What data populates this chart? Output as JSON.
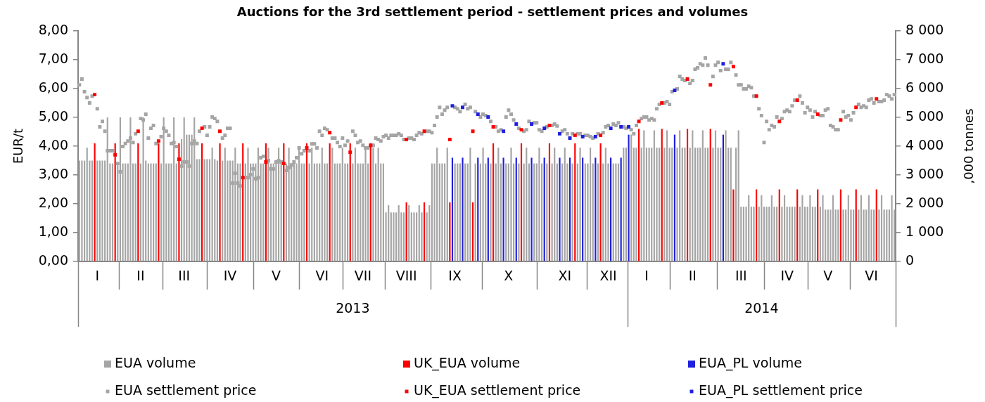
{
  "chart_data": {
    "type": "bar",
    "title": "Auctions for the 3rd settlement period - settlement prices and volumes",
    "ylabel": "EUR/t",
    "y2label": ",000 tonnes",
    "categories": [
      null,
      null,
      null,
      null,
      null,
      null,
      null,
      "I",
      null,
      null,
      null,
      null,
      null,
      null,
      null,
      null,
      null,
      null,
      null,
      null,
      null,
      null,
      null,
      null,
      "II",
      null,
      null,
      null,
      null,
      null,
      null,
      null,
      null,
      null,
      null,
      null,
      null,
      null,
      null,
      null,
      null,
      "III",
      null,
      null,
      null,
      null,
      null,
      null,
      null,
      null,
      null,
      null,
      null,
      null,
      null,
      null,
      null,
      null,
      null,
      "IV",
      null,
      null,
      null,
      null,
      null,
      null,
      null,
      null,
      null,
      null,
      null,
      null,
      null,
      null,
      null,
      null,
      null,
      "V",
      null,
      null,
      null,
      null,
      null,
      null,
      null,
      null,
      null,
      null,
      null,
      null,
      null,
      null,
      null,
      null,
      null,
      "VI",
      null,
      null,
      null,
      null,
      null,
      null,
      null,
      null,
      null,
      null,
      null,
      null,
      null,
      null,
      null,
      "VII",
      null,
      null,
      null,
      null,
      null,
      null,
      null,
      null,
      null,
      null,
      null,
      null,
      null,
      null,
      null,
      null,
      "VIII",
      null,
      null,
      null,
      null,
      null,
      null,
      null,
      null,
      null,
      null,
      null,
      null,
      null,
      null,
      null,
      null,
      null,
      null,
      "IX",
      null,
      null,
      null,
      null,
      null,
      null,
      null,
      null,
      null,
      null,
      null,
      null,
      null,
      null,
      null,
      null,
      null,
      null,
      null,
      null,
      "X",
      null,
      null,
      null,
      null,
      null,
      null,
      null,
      null,
      null,
      null,
      null,
      null,
      null,
      null,
      null,
      null,
      null,
      null,
      null,
      null,
      null,
      "XI",
      null,
      null,
      null,
      null,
      null,
      null,
      null,
      null,
      null,
      null,
      null,
      null,
      null,
      null,
      null,
      null,
      "XII",
      null,
      null,
      null,
      null,
      null,
      null,
      null,
      null,
      null,
      null,
      null,
      null,
      null,
      null,
      "I",
      null,
      null,
      null,
      null,
      null,
      null,
      null,
      null,
      null,
      null,
      null,
      null,
      null,
      null,
      null,
      null,
      null,
      "II",
      null,
      null,
      null,
      null,
      null,
      null,
      null,
      null,
      null,
      null,
      null,
      null,
      null,
      null,
      null,
      null,
      null,
      null,
      "III",
      null,
      null,
      null,
      null,
      null,
      null,
      null,
      null,
      null,
      null,
      null,
      null,
      null,
      null,
      null,
      null,
      null,
      "IV",
      null,
      null,
      null,
      null,
      null,
      null,
      null,
      null,
      null,
      null,
      null,
      null,
      null,
      null,
      null,
      "V",
      null,
      null,
      null,
      null,
      null,
      null,
      null,
      null,
      null,
      null,
      null,
      null,
      null,
      null,
      null,
      null,
      "VI",
      null,
      null,
      null,
      null,
      null,
      null,
      null,
      null,
      null
    ],
    "series": [
      {
        "name": "EUA volume",
        "axis": "y2",
        "color": "#a5a5a5",
        "values": [
          3500,
          3500,
          3500,
          3950,
          3500,
          3500,
          null,
          3500,
          3500,
          3500,
          3500,
          5000,
          3400,
          3400,
          null,
          3400,
          5000,
          3400,
          3400,
          3400,
          5000,
          3400,
          3400,
          null,
          3400,
          5000,
          3500,
          3400,
          3400,
          3400,
          3400,
          null,
          3400,
          5000,
          3400,
          3400,
          3400,
          5000,
          3400,
          null,
          4250,
          5000,
          4400,
          4400,
          4400,
          5000,
          3550,
          3550,
          null,
          3550,
          3550,
          3550,
          3950,
          3550,
          3500,
          null,
          3500,
          3950,
          3500,
          3500,
          3500,
          3950,
          3400,
          3400,
          null,
          3400,
          3950,
          3400,
          3400,
          3400,
          3950,
          3400,
          3400,
          null,
          3950,
          3400,
          3400,
          3400,
          3950,
          3400,
          null,
          3400,
          3950,
          3400,
          3400,
          3400,
          3950,
          3400,
          3400,
          null,
          3400,
          3950,
          3400,
          3400,
          3400,
          3950,
          3400,
          3400,
          null,
          3950,
          3400,
          3400,
          3400,
          3950,
          3400,
          3400,
          null,
          3400,
          3950,
          3400,
          3400,
          3400,
          3950,
          3400,
          null,
          3950,
          3400,
          3950,
          3400,
          3400,
          1700,
          1950,
          1700,
          1700,
          1700,
          1950,
          1700,
          1700,
          null,
          1950,
          1700,
          1700,
          1700,
          1950,
          1700,
          null,
          1700,
          1950,
          3400,
          3400,
          3950,
          3400,
          3400,
          3400,
          3950,
          null,
          null,
          3400,
          3400,
          3400,
          null,
          3400,
          3400,
          3950,
          null,
          3400,
          null,
          3400,
          3950,
          3400,
          null,
          3400,
          null,
          3400,
          3950,
          3400,
          null,
          3400,
          3400,
          3950,
          3400,
          null,
          3400,
          null,
          3400,
          3950,
          3400,
          null,
          3400,
          3400,
          3950,
          3400,
          null,
          3400,
          null,
          3400,
          3950,
          3400,
          null,
          3400,
          3950,
          3400,
          null,
          3400,
          null,
          3400,
          3950,
          null,
          3400,
          3400,
          3950,
          3400,
          null,
          3400,
          null,
          3400,
          3950,
          3400,
          null,
          3400,
          3400,
          3400,
          null,
          3950,
          3950,
          null,
          4400,
          3950,
          3950,
          null,
          3950,
          4550,
          3950,
          3950,
          3950,
          4550,
          3950,
          3950,
          null,
          3950,
          4550,
          3950,
          3950,
          null,
          3950,
          4550,
          3950,
          3950,
          null,
          3950,
          4550,
          3950,
          3950,
          3950,
          4550,
          3950,
          3950,
          null,
          3950,
          4550,
          3950,
          3950,
          null,
          4550,
          3950,
          3950,
          null,
          3950,
          4550,
          1900,
          1900,
          1900,
          2300,
          1900,
          1900,
          null,
          1900,
          2300,
          1900,
          1900,
          1900,
          2300,
          1900,
          1900,
          null,
          1900,
          2300,
          1900,
          1900,
          1900,
          1900,
          null,
          1900,
          2300,
          1900,
          1900,
          2300,
          1900,
          1900,
          null,
          1900,
          2300,
          1800,
          1800,
          1800,
          2300,
          1800,
          1800,
          null,
          1800,
          1800,
          2300,
          1800,
          1800,
          null,
          1800,
          2300,
          1800,
          1800,
          2300,
          1800,
          1800,
          null,
          1800,
          2300,
          1800,
          1800,
          1800,
          2300,
          1800
        ]
      },
      {
        "name": "UK_EUA volume",
        "axis": "y2",
        "color": "#ff0000",
        "values": [
          null,
          null,
          null,
          null,
          null,
          null,
          4100,
          null,
          null,
          null,
          null,
          null,
          null,
          null,
          4100,
          null,
          null,
          null,
          null,
          null,
          null,
          null,
          null,
          4100,
          null,
          null,
          null,
          null,
          null,
          null,
          null,
          4100,
          null,
          null,
          null,
          null,
          null,
          null,
          null,
          4100,
          null,
          null,
          null,
          null,
          null,
          null,
          null,
          null,
          4100,
          null,
          null,
          null,
          null,
          null,
          null,
          4100,
          null,
          null,
          null,
          null,
          null,
          null,
          null,
          null,
          4100,
          null,
          null,
          null,
          null,
          null,
          null,
          null,
          null,
          4100,
          null,
          null,
          null,
          null,
          null,
          null,
          4100,
          null,
          null,
          null,
          null,
          null,
          null,
          null,
          null,
          4100,
          null,
          null,
          null,
          null,
          null,
          null,
          null,
          null,
          4100,
          null,
          null,
          null,
          null,
          null,
          null,
          null,
          4100,
          null,
          null,
          null,
          null,
          null,
          null,
          null,
          4100,
          null,
          null,
          null,
          null,
          null,
          null,
          null,
          null,
          null,
          null,
          null,
          null,
          null,
          2050,
          null,
          null,
          null,
          null,
          null,
          null,
          2050,
          null,
          null,
          null,
          null,
          null,
          null,
          null,
          null,
          null,
          2050,
          null,
          null,
          null,
          null,
          null,
          null,
          null,
          null,
          2050,
          null,
          null,
          null,
          null,
          null,
          null,
          null,
          4100,
          null,
          null,
          null,
          null,
          null,
          null,
          null,
          null,
          null,
          null,
          4100,
          null,
          null,
          null,
          null,
          null,
          null,
          null,
          null,
          null,
          null,
          4100,
          null,
          null,
          null,
          null,
          null,
          null,
          null,
          null,
          null,
          4100,
          null,
          null,
          null,
          null,
          null,
          null,
          null,
          null,
          null,
          4100,
          null,
          null,
          null,
          null,
          null,
          null,
          null,
          null,
          null,
          null,
          null,
          null,
          null,
          null,
          4600,
          null,
          null,
          null,
          null,
          null,
          null,
          null,
          null,
          4600,
          null,
          null,
          null,
          null,
          null,
          null,
          null,
          null,
          null,
          4600,
          null,
          null,
          null,
          null,
          null,
          null,
          null,
          null,
          4600,
          null,
          null,
          null,
          null,
          null,
          null,
          null,
          null,
          2500,
          null,
          null,
          null,
          null,
          null,
          null,
          null,
          null,
          2500,
          null,
          null,
          null,
          null,
          null,
          null,
          null,
          null,
          2500,
          null,
          null,
          null,
          null,
          null,
          null,
          2500,
          null,
          null,
          null,
          null,
          null,
          null,
          null,
          2500,
          null,
          null,
          null,
          null,
          null,
          null,
          null,
          null,
          2500,
          null,
          null,
          null,
          null,
          null,
          2500,
          null,
          null,
          null,
          null,
          null,
          null,
          null,
          2500,
          null,
          null,
          null,
          null,
          null,
          null,
          null
        ]
      },
      {
        "name": "EUA_PL volume",
        "axis": "y2",
        "color": "#1f1fe0",
        "values": [
          null,
          null,
          null,
          null,
          null,
          null,
          null,
          null,
          null,
          null,
          null,
          null,
          null,
          null,
          null,
          null,
          null,
          null,
          null,
          null,
          null,
          null,
          null,
          null,
          null,
          null,
          null,
          null,
          null,
          null,
          null,
          null,
          null,
          null,
          null,
          null,
          null,
          null,
          null,
          null,
          null,
          null,
          null,
          null,
          null,
          null,
          null,
          null,
          null,
          null,
          null,
          null,
          null,
          null,
          null,
          null,
          null,
          null,
          null,
          null,
          null,
          null,
          null,
          null,
          null,
          null,
          null,
          null,
          null,
          null,
          null,
          null,
          null,
          null,
          null,
          null,
          null,
          null,
          null,
          null,
          null,
          null,
          null,
          null,
          null,
          null,
          null,
          null,
          null,
          null,
          null,
          null,
          null,
          null,
          null,
          null,
          null,
          null,
          null,
          null,
          null,
          null,
          null,
          null,
          null,
          null,
          null,
          null,
          null,
          null,
          null,
          null,
          null,
          null,
          null,
          null,
          null,
          null,
          null,
          null,
          null,
          null,
          null,
          null,
          null,
          null,
          null,
          null,
          null,
          null,
          null,
          null,
          null,
          null,
          null,
          null,
          null,
          null,
          null,
          null,
          null,
          null,
          null,
          null,
          null,
          null,
          3600,
          null,
          null,
          null,
          3600,
          null,
          null,
          null,
          null,
          null,
          3600,
          null,
          null,
          null,
          3600,
          null,
          null,
          null,
          null,
          null,
          3600,
          null,
          null,
          null,
          null,
          3600,
          null,
          null,
          null,
          null,
          null,
          3600,
          null,
          null,
          null,
          null,
          3600,
          null,
          null,
          null,
          null,
          null,
          3600,
          null,
          null,
          null,
          3600,
          null,
          null,
          null,
          null,
          3600,
          null,
          null,
          null,
          null,
          3600,
          null,
          null,
          null,
          null,
          null,
          3600,
          null,
          null,
          null,
          3600,
          null,
          null,
          4400,
          null,
          null,
          null,
          null,
          null,
          null,
          null,
          null,
          null,
          null,
          null,
          null,
          null,
          null,
          null,
          null,
          null,
          4400,
          null,
          null,
          null,
          null,
          null,
          null,
          null,
          null,
          null,
          null,
          null,
          null,
          null,
          null,
          null,
          null,
          null,
          null,
          4400,
          null,
          null,
          null,
          null,
          null,
          null,
          null,
          null,
          null,
          null,
          null,
          null,
          null,
          null,
          null,
          null,
          null,
          null,
          null,
          null,
          null,
          null,
          null,
          null,
          null,
          null,
          null,
          null,
          null,
          null,
          null,
          null,
          null,
          null,
          null,
          null,
          null,
          null,
          null,
          null,
          null,
          null,
          null,
          null,
          null,
          null,
          null,
          null,
          null,
          null,
          null,
          null,
          null,
          null,
          null,
          null,
          null,
          null,
          null,
          null,
          null,
          null,
          null,
          null,
          null,
          null,
          null
        ]
      },
      {
        "name": "EUA settlement price",
        "type": "scatter",
        "color": "#a5a5a5",
        "values": [
          6.13,
          6.33,
          5.89,
          5.69,
          5.5,
          5.74,
          null,
          5.3,
          4.67,
          4.86,
          4.52,
          3.84,
          3.84,
          3.84,
          null,
          3.4,
          3.11,
          3.99,
          4.09,
          4.18,
          4.28,
          4.13,
          4.43,
          null,
          4.96,
          4.91,
          5.11,
          4.28,
          4.62,
          4.72,
          4.09,
          null,
          4.33,
          4.62,
          4.52,
          4.38,
          4.09,
          4.13,
          3.99,
          null,
          3.31,
          3.45,
          3.45,
          3.31,
          4.09,
          4.18,
          4.09,
          4.52,
          null,
          4.67,
          4.38,
          4.67,
          5.01,
          4.96,
          4.86,
          null,
          4.28,
          4.38,
          4.62,
          4.62,
          2.72,
          3.06,
          2.72,
          2.62,
          null,
          2.91,
          2.91,
          3.01,
          3.21,
          2.87,
          2.91,
          3.6,
          3.65,
          null,
          3.5,
          3.21,
          3.21,
          3.45,
          3.5,
          3.45,
          null,
          3.16,
          3.26,
          3.35,
          3.45,
          3.6,
          3.94,
          3.74,
          3.84,
          null,
          3.84,
          4.08,
          4.08,
          3.94,
          4.52,
          4.38,
          4.62,
          4.57,
          null,
          4.28,
          4.28,
          4.13,
          3.99,
          4.28,
          4.03,
          4.18,
          null,
          4.52,
          4.38,
          4.13,
          4.18,
          4.03,
          3.94,
          3.94,
          null,
          4.03,
          4.28,
          4.23,
          4.18,
          4.33,
          4.38,
          4.28,
          4.38,
          4.38,
          4.38,
          4.43,
          4.38,
          4.23,
          null,
          4.28,
          4.28,
          4.23,
          4.38,
          4.47,
          4.43,
          null,
          4.52,
          4.52,
          4.47,
          4.72,
          5.01,
          5.35,
          5.11,
          5.25,
          5.35,
          null,
          null,
          5.35,
          5.3,
          5.2,
          null,
          5.45,
          5.3,
          5.35,
          null,
          5.2,
          null,
          5.01,
          5.11,
          5.06,
          null,
          4.86,
          null,
          4.67,
          4.52,
          4.57,
          null,
          5.01,
          5.25,
          5.11,
          4.91,
          null,
          4.62,
          null,
          4.52,
          4.57,
          4.86,
          null,
          4.81,
          4.81,
          4.57,
          4.52,
          null,
          4.67,
          null,
          4.72,
          4.77,
          4.7,
          null,
          4.52,
          4.57,
          4.43,
          null,
          4.43,
          null,
          4.43,
          4.43,
          null,
          4.38,
          4.38,
          4.33,
          4.28,
          null,
          4.43,
          null,
          4.47,
          4.67,
          4.72,
          null,
          4.77,
          4.72,
          4.81,
          null,
          4.67,
          4.62,
          null,
          4.57,
          4.43,
          4.72,
          null,
          4.96,
          5.01,
          5.01,
          4.91,
          4.96,
          4.91,
          5.3,
          5.45,
          null,
          5.5,
          5.55,
          5.45,
          5.89,
          null,
          5.99,
          6.42,
          6.33,
          6.28,
          null,
          6.18,
          6.28,
          6.67,
          6.72,
          6.86,
          6.81,
          7.06,
          6.81,
          null,
          6.42,
          6.81,
          6.91,
          6.62,
          null,
          6.67,
          6.67,
          6.91,
          null,
          6.47,
          6.13,
          6.13,
          5.99,
          5.99,
          6.08,
          6.03,
          5.74,
          null,
          5.3,
          5.06,
          4.13,
          4.86,
          4.57,
          4.72,
          4.67,
          5.01,
          null,
          4.96,
          5.2,
          5.25,
          5.2,
          5.4,
          5.6,
          null,
          5.74,
          5.5,
          5.16,
          5.35,
          5.25,
          5.01,
          5.2,
          null,
          5.06,
          5.06,
          5.25,
          5.3,
          4.72,
          4.67,
          4.57,
          4.57,
          null,
          5.2,
          5.01,
          5.06,
          4.91,
          5.16,
          null,
          5.45,
          5.35,
          5.4,
          5.35,
          5.6,
          5.64,
          5.5,
          null,
          5.55,
          5.55,
          5.6,
          5.79,
          5.74,
          5.64,
          5.79
        ]
      },
      {
        "name": "UK_EUA settlement price",
        "type": "scatter",
        "color": "#ff0000",
        "values": [
          null,
          null,
          null,
          null,
          null,
          null,
          5.79,
          null,
          null,
          null,
          null,
          null,
          null,
          null,
          3.7,
          null,
          null,
          null,
          null,
          null,
          null,
          null,
          null,
          4.52,
          null,
          null,
          null,
          null,
          null,
          null,
          null,
          4.18,
          null,
          null,
          null,
          null,
          null,
          null,
          null,
          3.55,
          null,
          null,
          null,
          null,
          null,
          null,
          null,
          null,
          4.62,
          null,
          null,
          null,
          null,
          null,
          null,
          4.52,
          null,
          null,
          null,
          null,
          null,
          null,
          null,
          null,
          2.91,
          null,
          null,
          null,
          null,
          null,
          null,
          null,
          null,
          3.45,
          null,
          null,
          null,
          null,
          null,
          null,
          3.4,
          null,
          null,
          null,
          null,
          null,
          null,
          null,
          null,
          3.94,
          null,
          null,
          null,
          null,
          null,
          null,
          null,
          null,
          4.47,
          null,
          null,
          null,
          null,
          null,
          null,
          null,
          3.79,
          null,
          null,
          null,
          null,
          null,
          null,
          null,
          4.03,
          null,
          null,
          null,
          null,
          null,
          null,
          null,
          null,
          null,
          null,
          null,
          null,
          null,
          4.23,
          null,
          null,
          null,
          null,
          null,
          null,
          4.52,
          null,
          null,
          null,
          null,
          null,
          null,
          null,
          null,
          null,
          4.23,
          null,
          null,
          null,
          null,
          null,
          null,
          null,
          null,
          4.52,
          null,
          null,
          null,
          null,
          null,
          null,
          null,
          4.67,
          null,
          null,
          null,
          null,
          null,
          null,
          null,
          null,
          null,
          null,
          4.57,
          null,
          null,
          null,
          null,
          null,
          null,
          null,
          null,
          null,
          null,
          4.72,
          null,
          null,
          null,
          null,
          null,
          null,
          null,
          null,
          null,
          4.38,
          null,
          null,
          null,
          null,
          null,
          null,
          null,
          null,
          null,
          4.38,
          null,
          null,
          null,
          null,
          null,
          null,
          null,
          null,
          null,
          null,
          null,
          null,
          null,
          null,
          4.86,
          null,
          null,
          null,
          null,
          null,
          null,
          null,
          null,
          5.5,
          null,
          null,
          null,
          null,
          null,
          null,
          null,
          null,
          null,
          6.33,
          null,
          null,
          null,
          null,
          null,
          null,
          null,
          null,
          6.13,
          null,
          null,
          null,
          null,
          null,
          null,
          null,
          null,
          6.76,
          null,
          null,
          null,
          null,
          null,
          null,
          null,
          null,
          5.74,
          null,
          null,
          null,
          null,
          null,
          null,
          null,
          null,
          4.86,
          null,
          null,
          null,
          null,
          null,
          null,
          5.6,
          null,
          null,
          null,
          null,
          null,
          null,
          null,
          5.11,
          null,
          null,
          null,
          null,
          null,
          null,
          null,
          null,
          4.91,
          null,
          null,
          null,
          null,
          null,
          5.35,
          null,
          null,
          null,
          null,
          null,
          null,
          null,
          5.64,
          null,
          null,
          null,
          null,
          null,
          null,
          null
        ]
      },
      {
        "name": "EUA_PL settlement price",
        "type": "scatter",
        "color": "#1f1fe0",
        "values": [
          null,
          null,
          null,
          null,
          null,
          null,
          null,
          null,
          null,
          null,
          null,
          null,
          null,
          null,
          null,
          null,
          null,
          null,
          null,
          null,
          null,
          null,
          null,
          null,
          null,
          null,
          null,
          null,
          null,
          null,
          null,
          null,
          null,
          null,
          null,
          null,
          null,
          null,
          null,
          null,
          null,
          null,
          null,
          null,
          null,
          null,
          null,
          null,
          null,
          null,
          null,
          null,
          null,
          null,
          null,
          null,
          null,
          null,
          null,
          null,
          null,
          null,
          null,
          null,
          null,
          null,
          null,
          null,
          null,
          null,
          null,
          null,
          null,
          null,
          null,
          null,
          null,
          null,
          null,
          null,
          null,
          null,
          null,
          null,
          null,
          null,
          null,
          null,
          null,
          null,
          null,
          null,
          null,
          null,
          null,
          null,
          null,
          null,
          null,
          null,
          null,
          null,
          null,
          null,
          null,
          null,
          null,
          null,
          null,
          null,
          null,
          null,
          null,
          null,
          null,
          null,
          null,
          null,
          null,
          null,
          null,
          null,
          null,
          null,
          null,
          null,
          null,
          null,
          null,
          null,
          null,
          null,
          null,
          null,
          null,
          null,
          null,
          null,
          null,
          null,
          null,
          null,
          null,
          null,
          null,
          null,
          5.4,
          null,
          null,
          null,
          5.35,
          null,
          null,
          null,
          null,
          null,
          5.11,
          null,
          null,
          null,
          5.01,
          null,
          null,
          null,
          null,
          null,
          4.52,
          null,
          null,
          null,
          null,
          4.77,
          null,
          null,
          null,
          null,
          null,
          4.77,
          null,
          null,
          null,
          null,
          4.62,
          null,
          null,
          null,
          null,
          null,
          4.43,
          null,
          null,
          null,
          4.28,
          null,
          null,
          null,
          null,
          4.33,
          null,
          null,
          null,
          null,
          4.33,
          null,
          null,
          null,
          null,
          null,
          4.62,
          null,
          null,
          null,
          4.67,
          null,
          null,
          4.67,
          null,
          null,
          null,
          null,
          null,
          null,
          null,
          null,
          null,
          null,
          null,
          null,
          null,
          null,
          null,
          null,
          null,
          5.94,
          null,
          null,
          null,
          null,
          null,
          null,
          null,
          null,
          null,
          null,
          null,
          null,
          null,
          null,
          null,
          null,
          null,
          null,
          6.86,
          null,
          null,
          null,
          null,
          null,
          null,
          null,
          null,
          null,
          null,
          null,
          null,
          null,
          null,
          null,
          null,
          null,
          null,
          null,
          null,
          null,
          null,
          null,
          null,
          null,
          null,
          null,
          null,
          null,
          null,
          null,
          null,
          null,
          null,
          null,
          null,
          null,
          null,
          null,
          null,
          null,
          null,
          null,
          null,
          null,
          null,
          null,
          null,
          null,
          null,
          null,
          null,
          null,
          null,
          null,
          null,
          null,
          null,
          null,
          null,
          null,
          null,
          null,
          null,
          null,
          null,
          null
        ]
      }
    ],
    "ylim": [
      0,
      8
    ],
    "yticks": [
      {
        "value": 0,
        "label": "0,00"
      },
      {
        "value": 1,
        "label": "1,00"
      },
      {
        "value": 2,
        "label": "2,00"
      },
      {
        "value": 3,
        "label": "3,00"
      },
      {
        "value": 4,
        "label": "4,00"
      },
      {
        "value": 5,
        "label": "5,00"
      },
      {
        "value": 6,
        "label": "6,00"
      },
      {
        "value": 7,
        "label": "7,00"
      },
      {
        "value": 8,
        "label": "8,00"
      }
    ],
    "y2lim": [
      0,
      8000
    ],
    "y2ticks": [
      0,
      {
        "value": 1000,
        "label": "1 000"
      },
      {
        "value": 2000,
        "label": "2 000"
      },
      {
        "value": 3000,
        "label": "3 000"
      },
      {
        "value": 4000,
        "label": "4 000"
      },
      {
        "value": 5000,
        "label": "5 000"
      },
      {
        "value": 6000,
        "label": "6 000"
      },
      {
        "value": 7000,
        "label": "7 000"
      },
      {
        "value": 8000,
        "label": "8 000"
      }
    ],
    "annotations": [
      "2013",
      "2014"
    ],
    "legend": "bottom",
    "grid": false,
    "marker": "square"
  }
}
